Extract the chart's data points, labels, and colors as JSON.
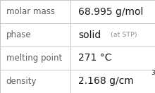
{
  "rows": [
    {
      "label": "molar mass",
      "value": "68.995 g/mol",
      "value_suffix": null,
      "superscript": null
    },
    {
      "label": "phase",
      "value": "solid",
      "value_suffix": "(at STP)",
      "superscript": null
    },
    {
      "label": "melting point",
      "value": "271 °C",
      "value_suffix": null,
      "superscript": null
    },
    {
      "label": "density",
      "value": "2.168 g/cm",
      "value_suffix": null,
      "superscript": "3"
    }
  ],
  "col_split": 0.455,
  "bg_color": "#ffffff",
  "border_color": "#c8c8c8",
  "label_color": "#606060",
  "value_color": "#1a1a1a",
  "suffix_color": "#909090",
  "label_fontsize": 8.5,
  "value_fontsize": 10.0,
  "suffix_fontsize": 6.8,
  "super_fontsize": 6.5
}
